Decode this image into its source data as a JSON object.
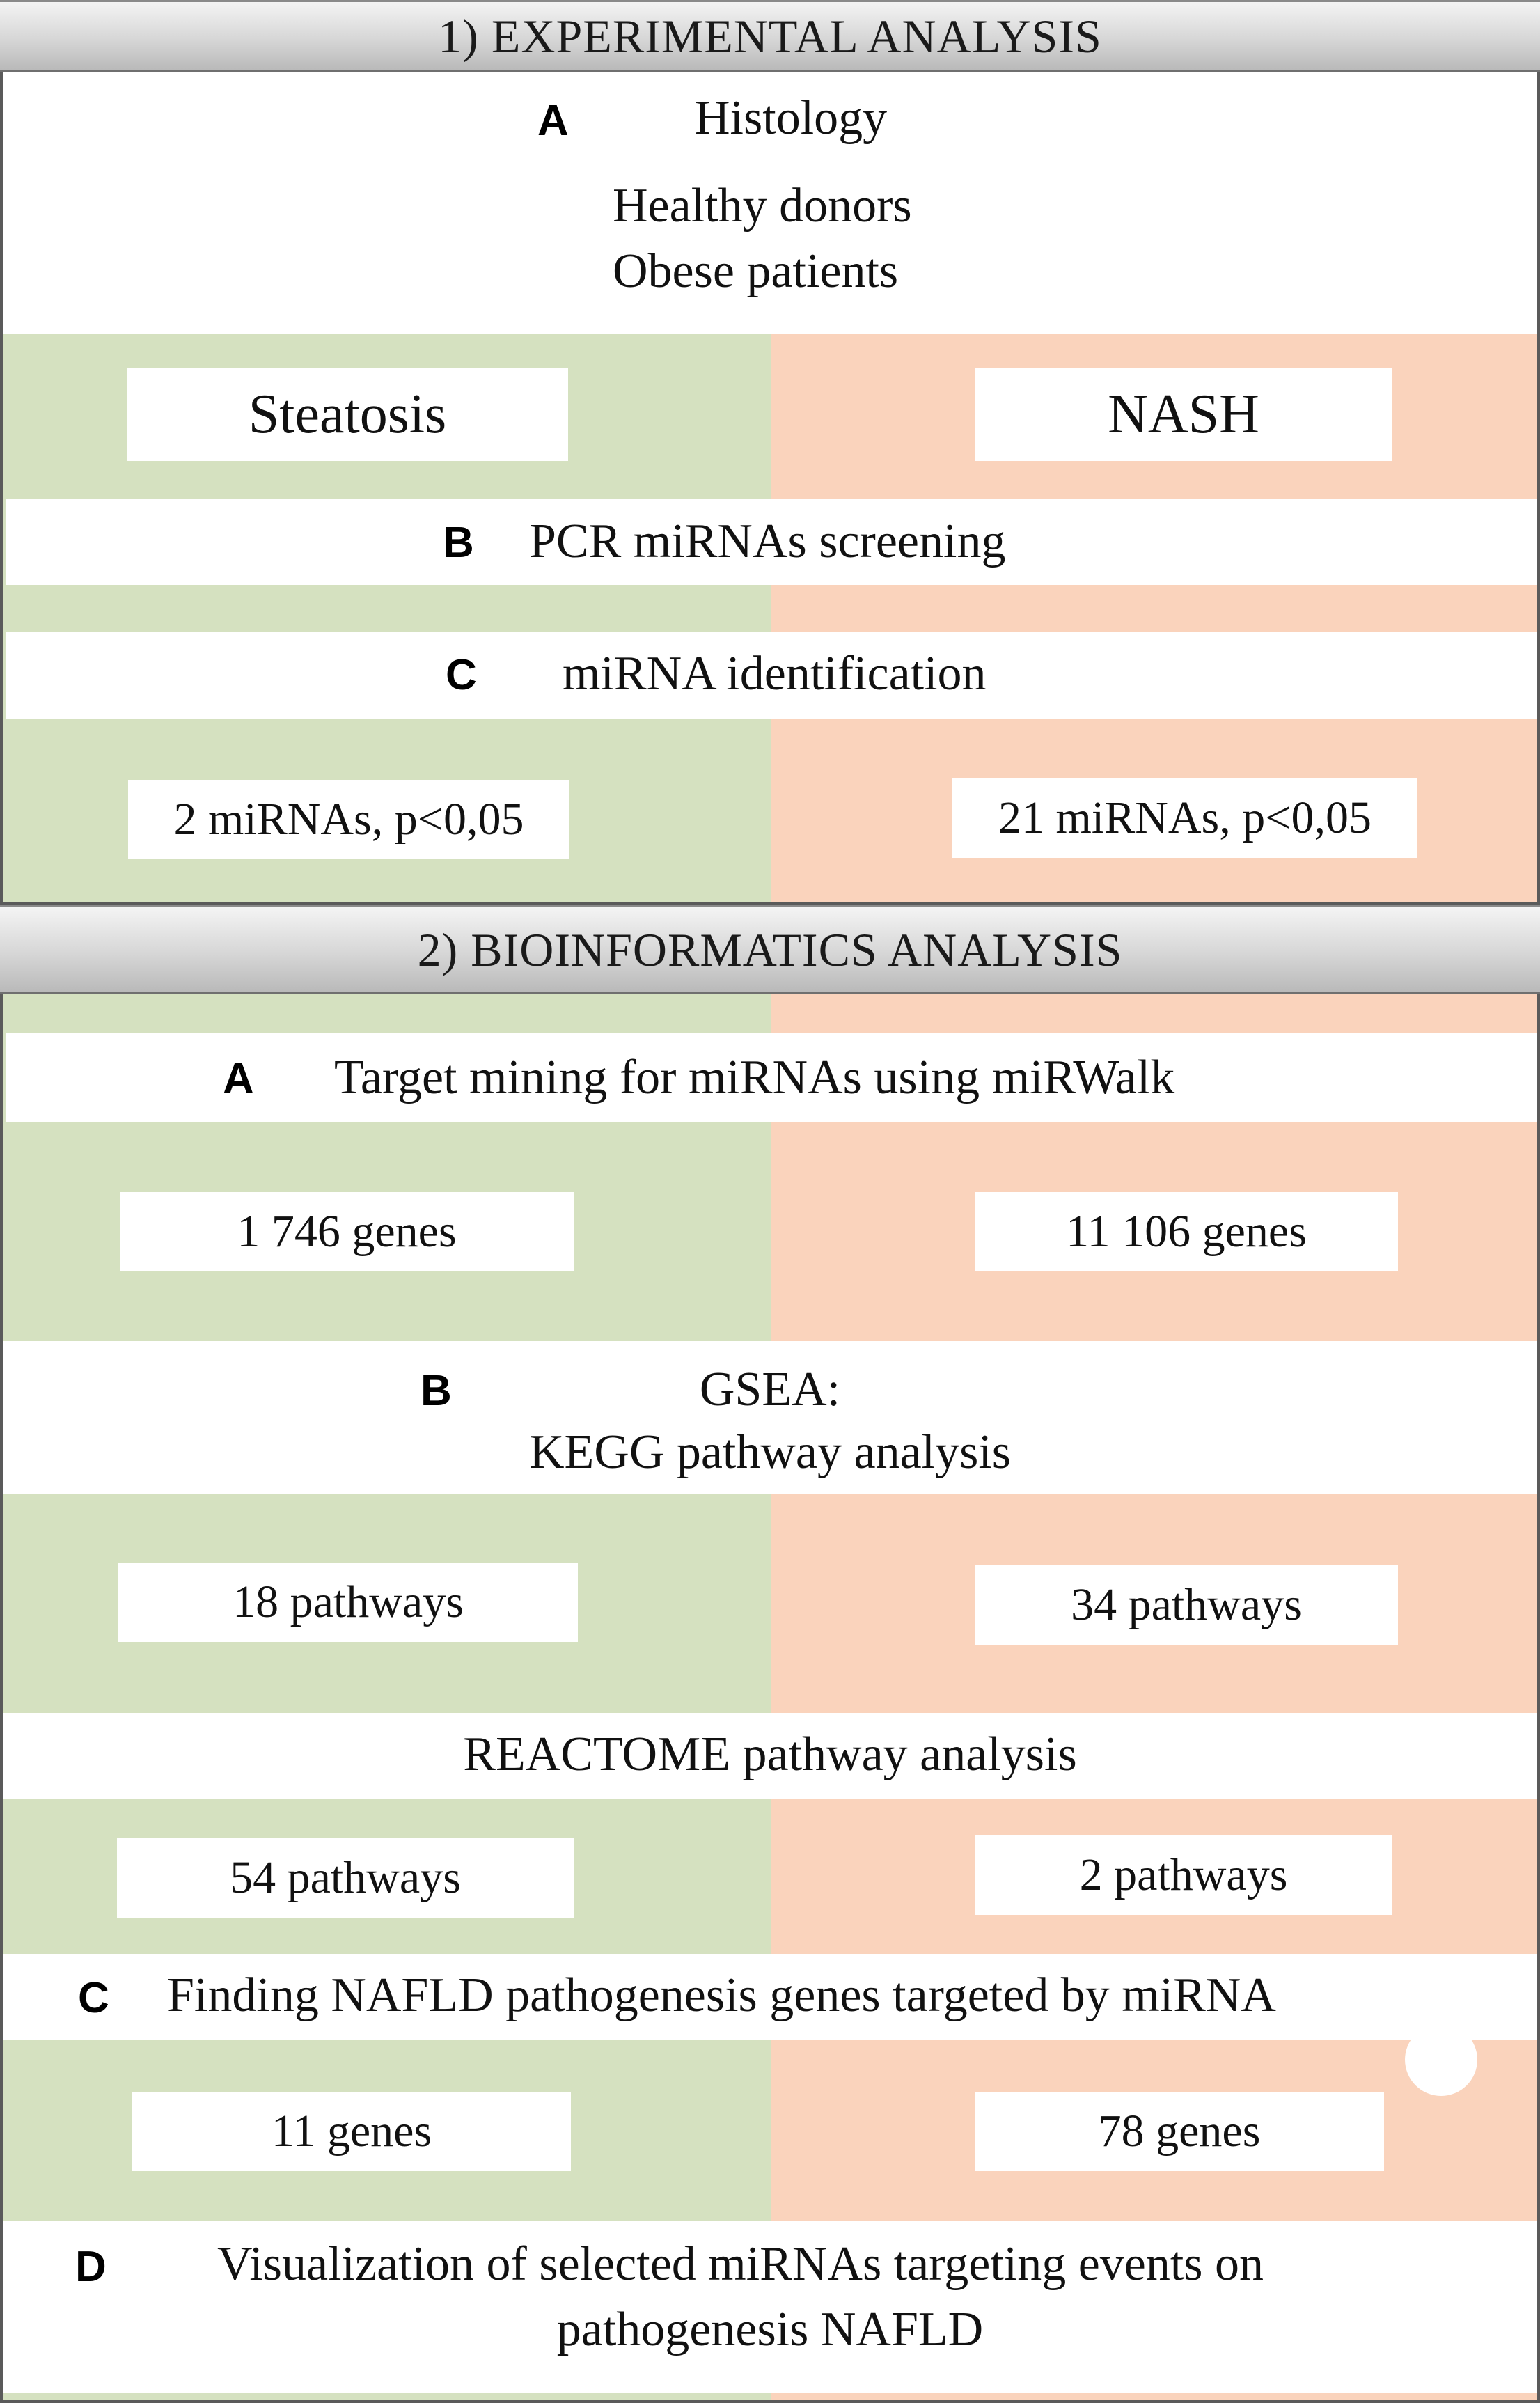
{
  "section1": {
    "header": "1) EXPERIMENTAL ANALYSIS",
    "a_letter": "A",
    "a_title": "Histology",
    "a_line1": "Healthy donors",
    "a_line2": "Obese  patients",
    "left_group": "Steatosis",
    "right_group": "NASH",
    "b_letter": "B",
    "b_text": "PCR miRNAs  screening",
    "c_letter": "C",
    "c_text": "miRNA identification",
    "left_result": "2 miRNAs, p<0,05",
    "right_result": "21 miRNAs, p<0,05"
  },
  "section2": {
    "header": "2) BIOINFORMATICS ANALYSIS",
    "a_letter": "A",
    "a_text": "Target mining  for miRNAs using miRWalk",
    "a_left": "1 746 genes",
    "a_right": "11 106 genes",
    "b_letter": "B",
    "b_line1": "GSEA:",
    "b_line2": "KEGG pathway analysis",
    "kegg_left": "18 pathways",
    "kegg_right": "34 pathways",
    "reactome_text": "REACTOME pathway analysis",
    "reactome_left": "54 pathways",
    "reactome_right": "2 pathways",
    "c_letter": "C",
    "c_text": "Finding NAFLD pathogenesis genes targeted by miRNA",
    "c_left": "11 genes",
    "c_right": "78 genes",
    "d_letter": "D",
    "d_line1": "Visualization of selected miRNAs targeting events on",
    "d_line2": "pathogenesis NAFLD"
  },
  "colors": {
    "steatosis_bg": "#d5e1c0",
    "nash_bg": "#fad3bc",
    "header_bg": "#d0d0d0"
  }
}
